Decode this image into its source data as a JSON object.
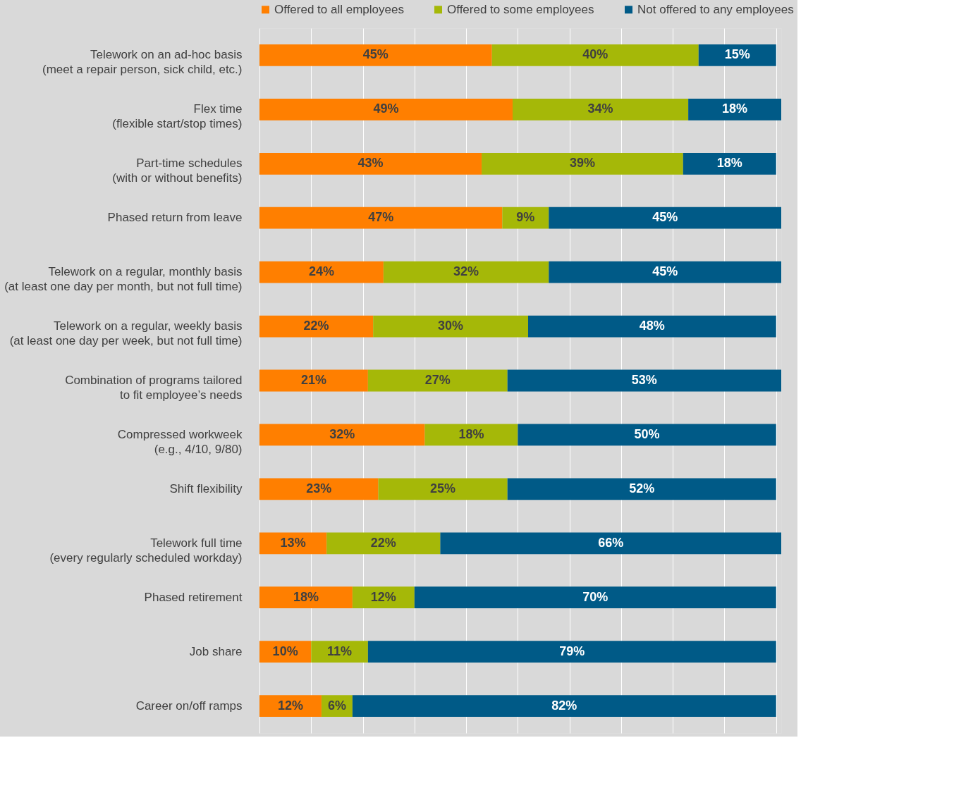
{
  "chart_data": {
    "type": "bar",
    "orientation": "horizontal",
    "stacked": true,
    "grid": "x",
    "legend": "top",
    "tick_labels": "y",
    "categories": [
      "Telework on an ad-hoc basis\n(meet a repair person, sick child, etc.)",
      "Flex time\n(flexible start/stop times)",
      "Part-time schedules\n(with or without benefits)",
      "Phased return from leave",
      "Telework on a regular, monthly basis\n(at least one day per month, but not full time)",
      "Telework on a regular, weekly basis\n(at least one day per week, but not full time)",
      "Combination of programs tailored\nto fit employee’s needs",
      "Compressed workweek\n(e.g., 4/10, 9/80)",
      "Shift flexibility",
      "Telework full time\n(every regularly scheduled workday)",
      "Phased retirement",
      "Job share",
      "Career on/off ramps"
    ],
    "series": [
      {
        "name": "Offered to all employees",
        "color": "#ff7f00",
        "values": [
          45,
          49,
          43,
          47,
          24,
          22,
          21,
          32,
          23,
          13,
          18,
          10,
          12
        ],
        "value_labels": [
          "45%",
          "49%",
          "43%",
          "47%",
          "24%",
          "22%",
          "21%",
          "32%",
          "23%",
          "13%",
          "18%",
          "10%",
          "12%"
        ]
      },
      {
        "name": "Offered to some employees",
        "color": "#a5b808",
        "values": [
          40,
          34,
          39,
          9,
          32,
          30,
          27,
          18,
          25,
          22,
          12,
          11,
          6
        ],
        "value_labels": [
          "40%",
          "34%",
          "39%",
          "9%",
          "32%",
          "30%",
          "27%",
          "18%",
          "25%",
          "22%",
          "12%",
          "11%",
          "6%"
        ]
      },
      {
        "name": "Not offered to any employees",
        "color": "#005a87",
        "values": [
          15,
          18,
          18,
          45,
          45,
          48,
          53,
          50,
          52,
          66,
          70,
          79,
          82
        ],
        "value_labels": [
          "15%",
          "18%",
          "18%",
          "45%",
          "45%",
          "48%",
          "53%",
          "50%",
          "52%",
          "66%",
          "70%",
          "79%",
          "82%"
        ]
      }
    ]
  }
}
